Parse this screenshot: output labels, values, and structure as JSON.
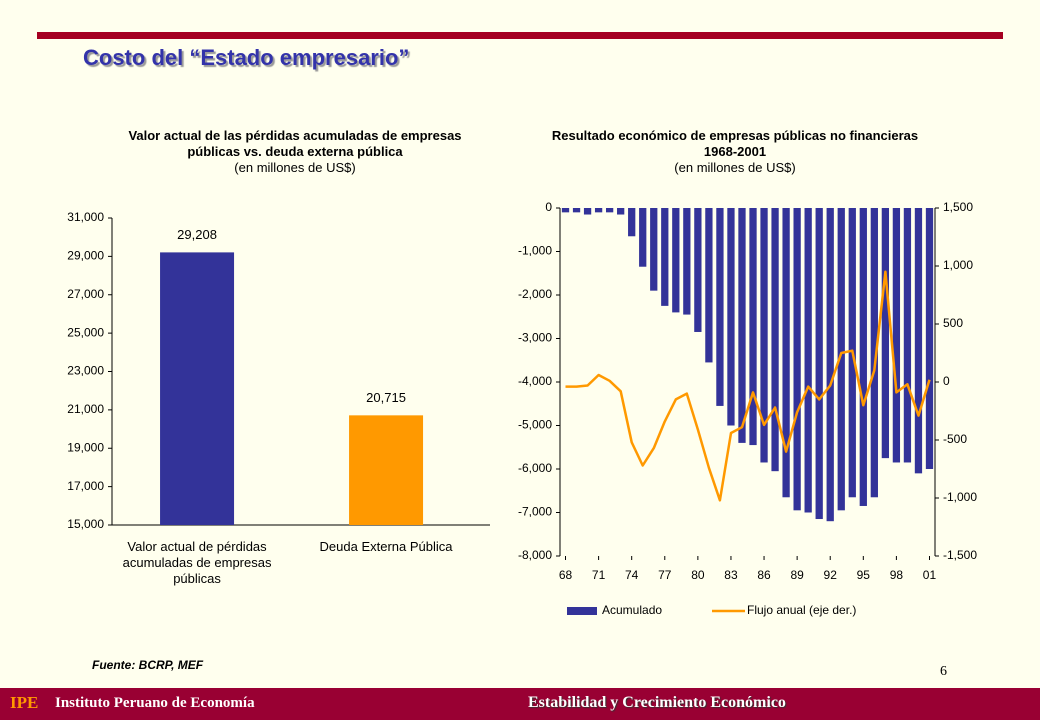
{
  "slide": {
    "title": "Costo del “Estado empresario”",
    "source": "Fuente: BCRP, MEF",
    "page": 6,
    "footer_abbr": "IPE",
    "footer_name": "Instituto Peruano de Economía",
    "footer_right": "Estabilidad y Crecimiento Económico"
  },
  "chart_data": [
    {
      "type": "bar",
      "title": "Valor actual de las pérdidas acumuladas de empresas públicas vs. deuda externa pública",
      "subtitle": "(en millones de US$)",
      "categories": [
        "Valor actual de pérdidas acumuladas de empresas públicas",
        "Deuda Externa Pública"
      ],
      "values": [
        29208,
        20715
      ],
      "value_labels": [
        "29,208",
        "20,715"
      ],
      "colors": [
        "#333399",
        "#FF9900"
      ],
      "ylim": [
        15000,
        31000
      ],
      "yticks": [
        {
          "value": 15000,
          "label": "15,000"
        },
        {
          "value": 17000,
          "label": "17,000"
        },
        {
          "value": 19000,
          "label": "19,000"
        },
        {
          "value": 21000,
          "label": "21,000"
        },
        {
          "value": 23000,
          "label": "23,000"
        },
        {
          "value": 25000,
          "label": "25,000"
        },
        {
          "value": 27000,
          "label": "27,000"
        },
        {
          "value": 29000,
          "label": "29,000"
        },
        {
          "value": 31000,
          "label": "31,000"
        }
      ]
    },
    {
      "type": "combo",
      "title": "Resultado económico de empresas públicas no financieras 1968-2001",
      "subtitle": "(en millones de US$)",
      "categories": [
        "68",
        null,
        null,
        "71",
        null,
        null,
        "74",
        null,
        null,
        "77",
        null,
        null,
        "80",
        null,
        null,
        "83",
        null,
        null,
        "86",
        null,
        null,
        "89",
        null,
        null,
        "92",
        null,
        null,
        "95",
        null,
        null,
        "98",
        null,
        null,
        "01"
      ],
      "series": [
        {
          "name": "Acumulado",
          "color": "#333399",
          "values": [
            -100,
            -100,
            -150,
            -100,
            -100,
            -150,
            -650,
            -1350,
            -1900,
            -2250,
            -2400,
            -2450,
            -2850,
            -3550,
            -4550,
            -5000,
            -5400,
            -5450,
            -5850,
            -6050,
            -6650,
            -6950,
            -7000,
            -7150,
            -7200,
            -6950,
            -6650,
            -6850,
            -6650,
            -5750,
            -5850,
            -5850,
            -6100,
            -6000
          ]
        },
        {
          "name": "Flujo anual (eje der.)",
          "color": "#FF9900",
          "axis": "y2",
          "values": [
            -40,
            -40,
            -30,
            60,
            10,
            -80,
            -520,
            -720,
            -570,
            -340,
            -150,
            -100,
            -410,
            -740,
            -1020,
            -440,
            -390,
            -90,
            -370,
            -220,
            -600,
            -260,
            -40,
            -150,
            -30,
            250,
            270,
            -200,
            100,
            950,
            -90,
            -20,
            -290,
            20
          ]
        }
      ],
      "ylim": [
        -8000,
        0
      ],
      "yticks": [
        0,
        {
          "value": -1000,
          "label": "-1,000"
        },
        {
          "value": -2000,
          "label": "-2,000"
        },
        {
          "value": -3000,
          "label": "-3,000"
        },
        {
          "value": -4000,
          "label": "-4,000"
        },
        {
          "value": -5000,
          "label": "-5,000"
        },
        {
          "value": -6000,
          "label": "-6,000"
        },
        {
          "value": -7000,
          "label": "-7,000"
        },
        {
          "value": -8000,
          "label": "-8,000"
        }
      ],
      "y2lim": [
        -1500,
        1500
      ],
      "y2ticks": [
        {
          "value": 1500,
          "label": "1,500"
        },
        {
          "value": 1000,
          "label": "1,000"
        },
        500,
        0,
        -500,
        {
          "value": -1000,
          "label": "-1,000"
        },
        {
          "value": -1500,
          "label": "-1,500"
        }
      ]
    }
  ]
}
